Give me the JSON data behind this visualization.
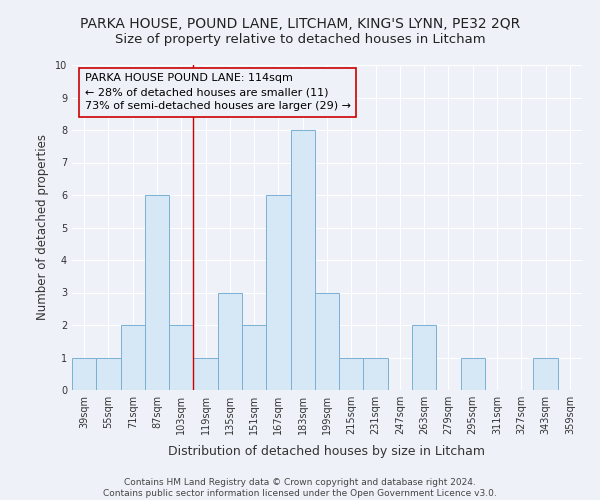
{
  "title": "PARKA HOUSE, POUND LANE, LITCHAM, KING'S LYNN, PE32 2QR",
  "subtitle": "Size of property relative to detached houses in Litcham",
  "xlabel": "Distribution of detached houses by size in Litcham",
  "ylabel": "Number of detached properties",
  "bar_color": "#d6e8f5",
  "bar_edge_color": "#7ab0d4",
  "categories": [
    "39sqm",
    "55sqm",
    "71sqm",
    "87sqm",
    "103sqm",
    "119sqm",
    "135sqm",
    "151sqm",
    "167sqm",
    "183sqm",
    "199sqm",
    "215sqm",
    "231sqm",
    "247sqm",
    "263sqm",
    "279sqm",
    "295sqm",
    "311sqm",
    "327sqm",
    "343sqm",
    "359sqm"
  ],
  "values": [
    1,
    1,
    2,
    6,
    2,
    1,
    3,
    2,
    6,
    8,
    3,
    1,
    1,
    0,
    2,
    0,
    1,
    0,
    0,
    1,
    0
  ],
  "ylim": [
    0,
    10
  ],
  "yticks": [
    0,
    1,
    2,
    3,
    4,
    5,
    6,
    7,
    8,
    9,
    10
  ],
  "vline_x": 4.5,
  "vline_color": "#cc0000",
  "annotation_text": "PARKA HOUSE POUND LANE: 114sqm\n← 28% of detached houses are smaller (11)\n73% of semi-detached houses are larger (29) →",
  "footer_text": "Contains HM Land Registry data © Crown copyright and database right 2024.\nContains public sector information licensed under the Open Government Licence v3.0.",
  "bg_color": "#eef2f8",
  "grid_color": "#ffffff",
  "title_fontsize": 10,
  "subtitle_fontsize": 9.5,
  "annotation_fontsize": 8,
  "tick_fontsize": 7,
  "ylabel_fontsize": 8.5,
  "xlabel_fontsize": 9,
  "footer_fontsize": 6.5
}
